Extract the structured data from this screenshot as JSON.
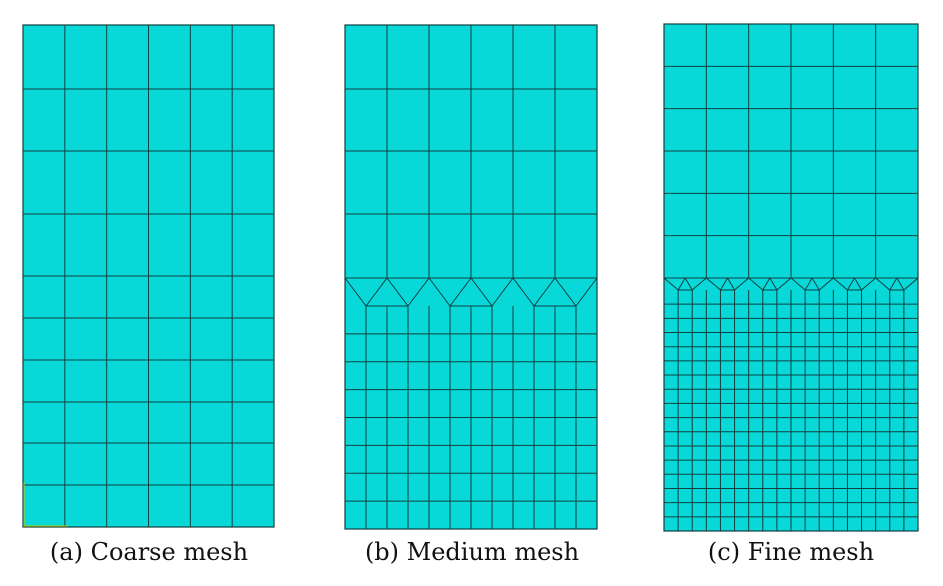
{
  "panels": [
    {
      "id": "a",
      "caption": "(a) Coarse mesh"
    },
    {
      "id": "b",
      "caption": "(b) Medium mesh"
    },
    {
      "id": "c",
      "caption": "(c) Fine mesh"
    }
  ],
  "colors": {
    "mesh_fill": "#08d8d8",
    "mesh_line": "#104040",
    "axis_marker": "#c8c800"
  }
}
